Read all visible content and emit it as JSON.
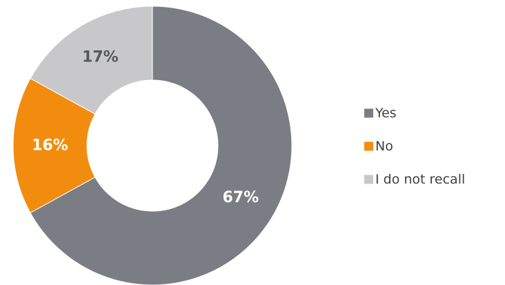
{
  "chart_data": {
    "type": "pie",
    "variant": "donut",
    "title": "",
    "categories": [
      "Yes",
      "No",
      "I do not recall"
    ],
    "values": [
      67,
      16,
      17
    ],
    "data_labels": [
      "67%",
      "16%",
      "17%"
    ],
    "colors": [
      "#7a7d83",
      "#f28c0f",
      "#c8c8ca"
    ],
    "label_colors": [
      "#ffffff",
      "#ffffff",
      "#55585e"
    ],
    "legend_position": "right",
    "start_direction": "top",
    "order": "clockwise"
  }
}
